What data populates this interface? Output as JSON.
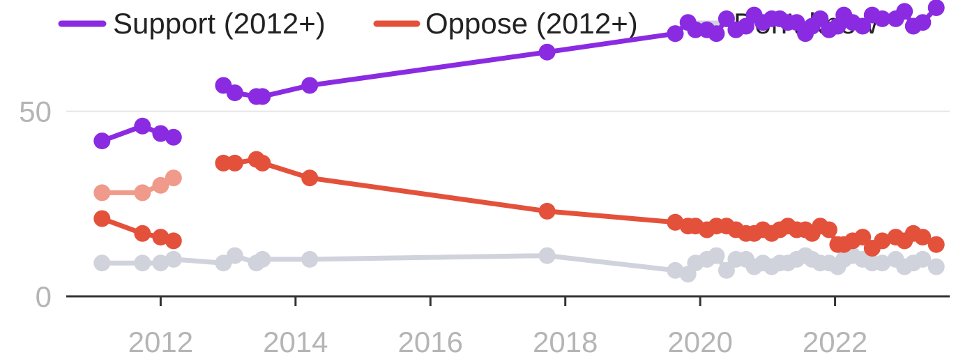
{
  "chart_data": {
    "type": "line",
    "grid": "horizontal",
    "legend_position": "top",
    "xlim": [
      2010.6,
      2023.7
    ],
    "ylim": [
      0,
      65
    ],
    "xticks": [
      {
        "value": 2012,
        "label": "2012"
      },
      {
        "value": 2014,
        "label": "2014"
      },
      {
        "value": 2016,
        "label": "2016"
      },
      {
        "value": 2018,
        "label": "2018"
      },
      {
        "value": 2020,
        "label": "2020"
      },
      {
        "value": 2022,
        "label": "2022"
      }
    ],
    "yticks": [
      {
        "value": 0,
        "label": "0"
      },
      {
        "value": 50,
        "label": "50"
      }
    ],
    "legend": [
      {
        "label": "Support (2012+)",
        "color": "#8a2be2"
      },
      {
        "label": "Oppose (2012+)",
        "color": "#e4513b"
      },
      {
        "label": "Don't know",
        "color": "#d0d2dc"
      }
    ],
    "series": [
      {
        "name": "Support (2012+)",
        "color": "#8a2be2",
        "segments": [
          {
            "x": [
              2011.13,
              2011.73,
              2012.0,
              2012.19
            ],
            "y": [
              42,
              46,
              44,
              43
            ]
          },
          {
            "x": [
              2012.93,
              2013.1,
              2013.42,
              2013.51,
              2014.21,
              2017.73,
              2019.63
            ],
            "y": [
              57,
              55,
              54,
              54,
              57,
              66,
              71
            ]
          },
          {
            "x": [
              2019.63,
              2019.82,
              2019.93,
              2020.1,
              2020.24,
              2020.39,
              2020.53,
              2020.68,
              2020.8,
              2020.93,
              2021.06,
              2021.18,
              2021.3,
              2021.43,
              2021.56,
              2021.66,
              2021.78,
              2021.91,
              2022.04,
              2022.13,
              2022.26,
              2022.41,
              2022.55,
              2022.7,
              2022.9,
              2023.03,
              2023.16,
              2023.3,
              2023.5
            ],
            "y": [
              71,
              74,
              72,
              72,
              71,
              75,
              72,
              73,
              76,
              74,
              75,
              75,
              74,
              74,
              71,
              73,
              75,
              72,
              73,
              76,
              74,
              73,
              76,
              75,
              75,
              77,
              73,
              74,
              78
            ]
          }
        ]
      },
      {
        "name": "Oppose (2012+)",
        "color": "#e4513b",
        "segments": [
          {
            "x": [
              2011.13,
              2011.73,
              2012.0,
              2012.19
            ],
            "y": [
              21,
              17,
              16,
              15
            ]
          },
          {
            "x": [
              2012.93,
              2013.1,
              2013.42,
              2013.51,
              2014.21,
              2017.73,
              2019.63
            ],
            "y": [
              36,
              36,
              37,
              36,
              32,
              23,
              20
            ]
          },
          {
            "x": [
              2019.63,
              2019.82,
              2019.93,
              2020.1,
              2020.24,
              2020.39,
              2020.53,
              2020.68,
              2020.8,
              2020.93,
              2021.06,
              2021.18,
              2021.3,
              2021.43,
              2021.56,
              2021.66,
              2021.78,
              2021.91,
              2022.04,
              2022.13,
              2022.26,
              2022.41,
              2022.55,
              2022.7,
              2022.9,
              2023.03,
              2023.16,
              2023.3,
              2023.5
            ],
            "y": [
              20,
              19,
              19,
              18,
              19,
              19,
              18,
              17,
              17,
              18,
              17,
              18,
              19,
              18,
              18,
              17,
              19,
              18,
              14,
              14,
              15,
              16,
              13,
              15,
              16,
              15,
              17,
              16,
              14
            ]
          }
        ]
      },
      {
        "name": "",
        "color": "#ef9a8a",
        "segments": [
          {
            "x": [
              2011.13,
              2011.73,
              2012.0,
              2012.19
            ],
            "y": [
              28,
              28,
              30,
              32
            ]
          }
        ]
      },
      {
        "name": "Don't know",
        "color": "#d0d2dc",
        "segments": [
          {
            "x": [
              2011.13,
              2011.73,
              2012.0,
              2012.19,
              2012.93,
              2013.1,
              2013.42,
              2013.51,
              2014.21,
              2017.73,
              2019.63,
              2019.82,
              2019.93,
              2020.1,
              2020.24,
              2020.39,
              2020.53,
              2020.68,
              2020.8,
              2020.93,
              2021.06,
              2021.18,
              2021.3,
              2021.43,
              2021.56,
              2021.66,
              2021.78,
              2021.91,
              2022.04,
              2022.13,
              2022.26,
              2022.41,
              2022.55,
              2022.7,
              2022.9,
              2023.03,
              2023.16,
              2023.3,
              2023.5
            ],
            "y": [
              9,
              9,
              9,
              10,
              9,
              11,
              9,
              10,
              10,
              11,
              7,
              6,
              9,
              10,
              11,
              7,
              10,
              10,
              8,
              9,
              8,
              9,
              9,
              10,
              11,
              10,
              9,
              9,
              8,
              10,
              11,
              10,
              9,
              9,
              10,
              8,
              9,
              10,
              8
            ]
          }
        ]
      }
    ]
  }
}
